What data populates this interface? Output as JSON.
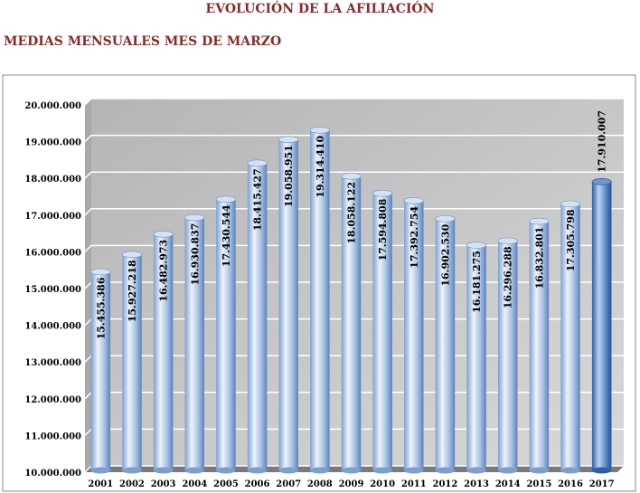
{
  "header": {
    "title": "EVOLUCIÓN DE LA AFILIACIÓN",
    "subtitle": "MEDIAS MENSUALES MES DE MARZO"
  },
  "chart_data": {
    "type": "bar",
    "title": "",
    "xlabel": "",
    "ylabel": "",
    "categories": [
      "2001",
      "2002",
      "2003",
      "2004",
      "2005",
      "2006",
      "2007",
      "2008",
      "2009",
      "2010",
      "2011",
      "2012",
      "2013",
      "2014",
      "2015",
      "2016",
      "2017"
    ],
    "values": [
      15455386,
      15927218,
      16482973,
      16930837,
      17430544,
      18415427,
      19058951,
      19314410,
      18058122,
      17594808,
      17392754,
      16902530,
      16181275,
      16296288,
      16832801,
      17305798,
      17910007
    ],
    "value_labels": [
      "15.455.386",
      "15.927.218",
      "16.482.973",
      "16.930.837",
      "17.430.544",
      "18.415.427",
      "19.058.951",
      "19.314.410",
      "18.058.122",
      "17.594.808",
      "17.392.754",
      "16.902.530",
      "16.181.275",
      "16.296.288",
      "16.832.801",
      "17.305.798",
      "17.910.007"
    ],
    "ylim": [
      10000000,
      20000000
    ],
    "yticks": [
      10000000,
      11000000,
      12000000,
      13000000,
      14000000,
      15000000,
      16000000,
      17000000,
      18000000,
      19000000,
      20000000
    ],
    "ytick_labels": [
      "10.000.000",
      "11.000.000",
      "12.000.000",
      "13.000.000",
      "14.000.000",
      "15.000.000",
      "16.000.000",
      "17.000.000",
      "18.000.000",
      "19.000.000",
      "20.000.000"
    ],
    "grid": true,
    "legend": "none",
    "colors": {
      "bar_light": "#e6eef8",
      "bar_mid": "#9db9de",
      "bar_dark": "#5a82bd",
      "highlight_dark": "#1f4f99",
      "wall": "#c4c4c4",
      "floor": "#7a7a7a"
    }
  }
}
